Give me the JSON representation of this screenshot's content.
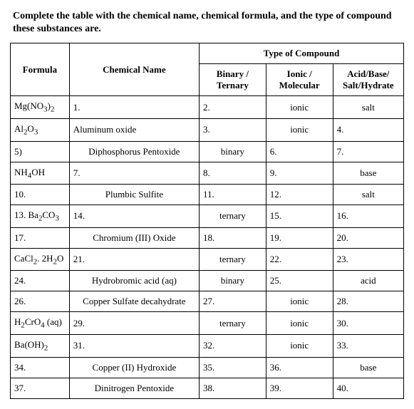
{
  "instructions": "Complete the table with the chemical name, chemical formula, and the type of compound these substances are.",
  "headers": {
    "formula": "Formula",
    "name": "Chemical Name",
    "type_group": "Type of Compound",
    "bt": "Binary / Ternary",
    "im": "Ionic / Molecular",
    "ab": "Acid/Base/ Salt/Hydrate"
  },
  "rows": [
    {
      "formula_html": "Mg(NO<sub>3</sub>)<sub>2</sub>",
      "name": "1.",
      "name_align": "left",
      "bt": "2.",
      "bt_align": "left",
      "im": "ionic",
      "im_align": "center",
      "ab": "salt",
      "ab_align": "center"
    },
    {
      "formula_html": "Al<sub>2</sub>O<sub>3</sub>",
      "name": "Aluminum oxide",
      "name_align": "left",
      "bt": "3.",
      "bt_align": "left",
      "im": "ionic",
      "im_align": "center",
      "ab": "4.",
      "ab_align": "left"
    },
    {
      "formula_html": "5)",
      "name": "Diphosphorus Pentoxide",
      "name_align": "center",
      "bt": "binary",
      "bt_align": "center",
      "im": "6.",
      "im_align": "left",
      "ab": "7.",
      "ab_align": "left"
    },
    {
      "formula_html": "NH<sub>4</sub>OH",
      "name": "7.",
      "name_align": "left",
      "bt": "8.",
      "bt_align": "left",
      "im": "9.",
      "im_align": "left",
      "ab": "base",
      "ab_align": "center"
    },
    {
      "formula_html": "10.",
      "name": "Plumbic Sulfite",
      "name_align": "center",
      "bt": "11.",
      "bt_align": "left",
      "im": "12.",
      "im_align": "left",
      "ab": "salt",
      "ab_align": "center"
    },
    {
      "formula_html": "13. Ba<sub>2</sub>CO<sub>3</sub>",
      "name": "14.",
      "name_align": "left",
      "bt": "ternary",
      "bt_align": "center",
      "im": "15.",
      "im_align": "left",
      "ab": "16.",
      "ab_align": "left"
    },
    {
      "formula_html": "17.",
      "name": "Chromium (III) Oxide",
      "name_align": "center",
      "bt": "18.",
      "bt_align": "left",
      "im": "19.",
      "im_align": "left",
      "ab": "20.",
      "ab_align": "left"
    },
    {
      "formula_html": "CaCl<sub>2</sub>. 2H<sub>2</sub>O",
      "name": "21.",
      "name_align": "left",
      "bt": "ternary",
      "bt_align": "center",
      "im": "22.",
      "im_align": "left",
      "ab": "23.",
      "ab_align": "left"
    },
    {
      "formula_html": "24.",
      "name": "Hydrobromic acid (aq)",
      "name_align": "center",
      "bt": "binary",
      "bt_align": "center",
      "im": "25.",
      "im_align": "left",
      "ab": "acid",
      "ab_align": "center"
    },
    {
      "formula_html": "26.",
      "name": "Copper Sulfate decahydrate",
      "name_align": "center",
      "bt": "27.",
      "bt_align": "left",
      "im": "ionic",
      "im_align": "center",
      "ab": "28.",
      "ab_align": "left"
    },
    {
      "formula_html": "H<sub>2</sub>CrO<sub>4</sub> (aq)",
      "name": "29.",
      "name_align": "left",
      "bt": "ternary",
      "bt_align": "center",
      "im": "ionic",
      "im_align": "center",
      "ab": "30.",
      "ab_align": "left"
    },
    {
      "formula_html": "Ba(OH)<sub>2</sub>",
      "name": "31.",
      "name_align": "left",
      "bt": "32.",
      "bt_align": "left",
      "im": "ionic",
      "im_align": "center",
      "ab": "33.",
      "ab_align": "left"
    },
    {
      "formula_html": "34.",
      "name": "Copper (II) Hydroxide",
      "name_align": "center",
      "bt": "35.",
      "bt_align": "left",
      "im": "36.",
      "im_align": "left",
      "ab": "base",
      "ab_align": "center"
    },
    {
      "formula_html": "37.",
      "name": "Dinitrogen Pentoxide",
      "name_align": "center",
      "bt": "38.",
      "bt_align": "left",
      "im": "39.",
      "im_align": "left",
      "ab": "40.",
      "ab_align": "left"
    }
  ]
}
